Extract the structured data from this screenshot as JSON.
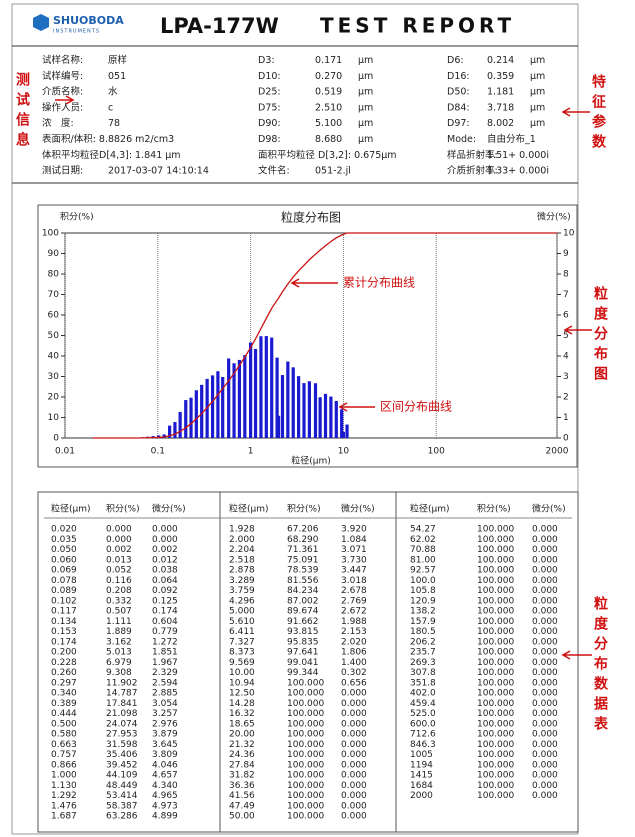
{
  "header": {
    "logo": "SHUOBODA",
    "logo_sub": "INSTRUMENTS",
    "model": "LPA-177W",
    "title": "TEST REPORT"
  },
  "info": {
    "left": [
      [
        "试样名称:",
        "原样"
      ],
      [
        "试样编号:",
        "051"
      ],
      [
        "介质名称:",
        "水"
      ],
      [
        "操作人员:",
        "c"
      ],
      [
        "浓　度:",
        "78"
      ],
      [
        "表面积/体积:",
        "8.8826 m2/cm3"
      ],
      [
        "体积平均粒径D[4,3]:",
        "1.841 μm"
      ],
      [
        "测试日期:",
        "2017-03-07 14:10:14"
      ]
    ],
    "middle": [
      [
        "D3:",
        "0.171",
        "μm"
      ],
      [
        "D10:",
        "0.270",
        "μm"
      ],
      [
        "D25:",
        "0.519",
        "μm"
      ],
      [
        "D75:",
        "2.510",
        "μm"
      ],
      [
        "D90:",
        "5.100",
        "μm"
      ],
      [
        "D98:",
        "8.680",
        "μm"
      ],
      [
        "面积平均粒径 D[3,2]:",
        "0.675μm"
      ],
      [
        "文件名:",
        "051-2.jl"
      ]
    ],
    "right": [
      [
        "D6:",
        "0.214",
        "μm"
      ],
      [
        "D16:",
        "0.359",
        "μm"
      ],
      [
        "D50:",
        "1.181",
        "μm"
      ],
      [
        "D84:",
        "3.718",
        "μm"
      ],
      [
        "D97:",
        "8.002",
        "μm"
      ],
      [
        "Mode:",
        "自由分布_1"
      ],
      [
        "样品折射率:",
        "1.51+ 0.000i"
      ],
      [
        "介质折射率:",
        "1.33+ 0.000i"
      ]
    ]
  },
  "labels": {
    "info": "测试信息",
    "params": "特征参数",
    "chart": "粒度分布图",
    "table": "粒度分布数据表"
  },
  "chart_data": {
    "type": "combo",
    "title": "粒度分布图",
    "ylabel": "积分(%)",
    "y2label": "微分(%)",
    "xlabel": "粒径(μm)",
    "log_x": true,
    "xlim": [
      0.01,
      2000
    ],
    "xticks": [
      0.01,
      0.1,
      1,
      10,
      100,
      2000
    ],
    "ylim": [
      0,
      100
    ],
    "yticks": [
      0,
      10,
      20,
      30,
      40,
      50,
      60,
      70,
      80,
      90,
      100
    ],
    "y2lim": [
      0,
      10
    ],
    "y2ticks": [
      0,
      1,
      2,
      3,
      4,
      5,
      6,
      7,
      8,
      9,
      10
    ],
    "line_color": "#cc1111",
    "bar_color": "#1a1ad0",
    "annotations": [
      "累计分布曲线",
      "区间分布曲线"
    ]
  },
  "table": {
    "header": [
      "粒径(μm)",
      "积分(%)",
      "微分(%)"
    ],
    "blocks": [
      [
        [
          "0.020",
          "0.000",
          "0.000"
        ],
        [
          "0.035",
          "0.000",
          "0.000"
        ],
        [
          "0.050",
          "0.002",
          "0.002"
        ],
        [
          "0.060",
          "0.013",
          "0.012"
        ],
        [
          "0.069",
          "0.052",
          "0.038"
        ],
        [
          "0.078",
          "0.116",
          "0.064"
        ],
        [
          "0.089",
          "0.208",
          "0.092"
        ],
        [
          "0.102",
          "0.332",
          "0.125"
        ],
        [
          "0.117",
          "0.507",
          "0.174"
        ],
        [
          "0.134",
          "1.111",
          "0.604"
        ],
        [
          "0.153",
          "1.889",
          "0.779"
        ],
        [
          "0.174",
          "3.162",
          "1.272"
        ],
        [
          "0.200",
          "5.013",
          "1.851"
        ],
        [
          "0.228",
          "6.979",
          "1.967"
        ],
        [
          "0.260",
          "9.308",
          "2.329"
        ],
        [
          "0.297",
          "11.902",
          "2.594"
        ],
        [
          "0.340",
          "14.787",
          "2.885"
        ],
        [
          "0.389",
          "17.841",
          "3.054"
        ],
        [
          "0.444",
          "21.098",
          "3.257"
        ],
        [
          "0.500",
          "24.074",
          "2.976"
        ],
        [
          "0.580",
          "27.953",
          "3.879"
        ],
        [
          "0.663",
          "31.598",
          "3.645"
        ],
        [
          "0.757",
          "35.406",
          "3.809"
        ],
        [
          "0.866",
          "39.452",
          "4.046"
        ],
        [
          "1.000",
          "44.109",
          "4.657"
        ],
        [
          "1.130",
          "48.449",
          "4.340"
        ],
        [
          "1.292",
          "53.414",
          "4.965"
        ],
        [
          "1.476",
          "58.387",
          "4.973"
        ],
        [
          "1.687",
          "63.286",
          "4.899"
        ]
      ],
      [
        [
          "1.928",
          "67.206",
          "3.920"
        ],
        [
          "2.000",
          "68.290",
          "1.084"
        ],
        [
          "2.204",
          "71.361",
          "3.071"
        ],
        [
          "2.518",
          "75.091",
          "3.730"
        ],
        [
          "2.878",
          "78.539",
          "3.447"
        ],
        [
          "3.289",
          "81.556",
          "3.018"
        ],
        [
          "3.759",
          "84.234",
          "2.678"
        ],
        [
          "4.296",
          "87.002",
          "2.769"
        ],
        [
          "5.000",
          "89.674",
          "2.672"
        ],
        [
          "5.610",
          "91.662",
          "1.988"
        ],
        [
          "6.411",
          "93.815",
          "2.153"
        ],
        [
          "7.327",
          "95.835",
          "2.020"
        ],
        [
          "8.373",
          "97.641",
          "1.806"
        ],
        [
          "9.569",
          "99.041",
          "1.400"
        ],
        [
          "10.00",
          "99.344",
          "0.302"
        ],
        [
          "10.94",
          "100.000",
          "0.656"
        ],
        [
          "12.50",
          "100.000",
          "0.000"
        ],
        [
          "14.28",
          "100.000",
          "0.000"
        ],
        [
          "16.32",
          "100.000",
          "0.000"
        ],
        [
          "18.65",
          "100.000",
          "0.000"
        ],
        [
          "20.00",
          "100.000",
          "0.000"
        ],
        [
          "21.32",
          "100.000",
          "0.000"
        ],
        [
          "24.36",
          "100.000",
          "0.000"
        ],
        [
          "27.84",
          "100.000",
          "0.000"
        ],
        [
          "31.82",
          "100.000",
          "0.000"
        ],
        [
          "36.36",
          "100.000",
          "0.000"
        ],
        [
          "41.56",
          "100.000",
          "0.000"
        ],
        [
          "47.49",
          "100.000",
          "0.000"
        ],
        [
          "50.00",
          "100.000",
          "0.000"
        ]
      ],
      [
        [
          "54.27",
          "100.000",
          "0.000"
        ],
        [
          "62.02",
          "100.000",
          "0.000"
        ],
        [
          "70.88",
          "100.000",
          "0.000"
        ],
        [
          "81.00",
          "100.000",
          "0.000"
        ],
        [
          "92.57",
          "100.000",
          "0.000"
        ],
        [
          "100.0",
          "100.000",
          "0.000"
        ],
        [
          "105.8",
          "100.000",
          "0.000"
        ],
        [
          "120.9",
          "100.000",
          "0.000"
        ],
        [
          "138.2",
          "100.000",
          "0.000"
        ],
        [
          "157.9",
          "100.000",
          "0.000"
        ],
        [
          "180.5",
          "100.000",
          "0.000"
        ],
        [
          "206.2",
          "100.000",
          "0.000"
        ],
        [
          "235.7",
          "100.000",
          "0.000"
        ],
        [
          "269.3",
          "100.000",
          "0.000"
        ],
        [
          "307.8",
          "100.000",
          "0.000"
        ],
        [
          "351.8",
          "100.000",
          "0.000"
        ],
        [
          "402.0",
          "100.000",
          "0.000"
        ],
        [
          "459.4",
          "100.000",
          "0.000"
        ],
        [
          "525.0",
          "100.000",
          "0.000"
        ],
        [
          "600.0",
          "100.000",
          "0.000"
        ],
        [
          "712.6",
          "100.000",
          "0.000"
        ],
        [
          "846.3",
          "100.000",
          "0.000"
        ],
        [
          "1005",
          "100.000",
          "0.000"
        ],
        [
          "1194",
          "100.000",
          "0.000"
        ],
        [
          "1415",
          "100.000",
          "0.000"
        ],
        [
          "1684",
          "100.000",
          "0.000"
        ],
        [
          "2000",
          "100.000",
          "0.000"
        ]
      ]
    ]
  }
}
